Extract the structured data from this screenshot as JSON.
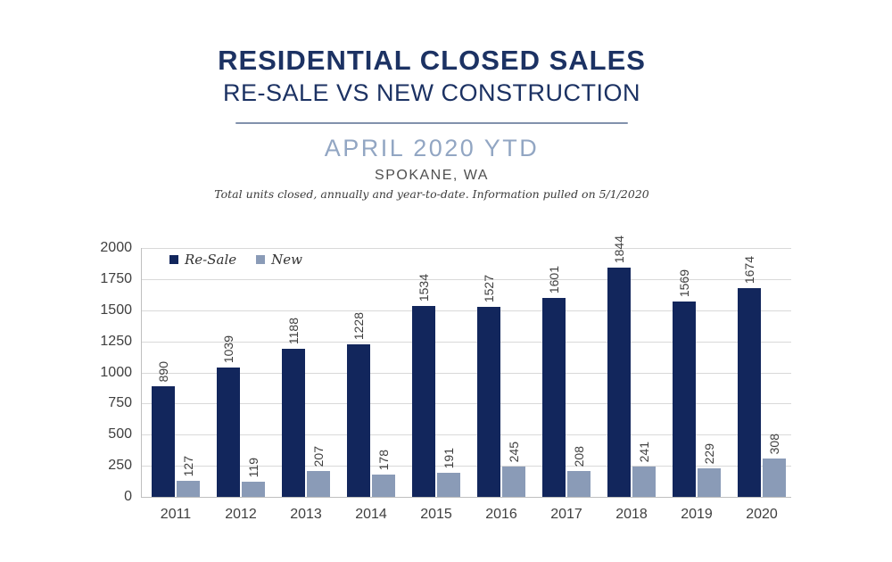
{
  "header": {
    "title": "RESIDENTIAL CLOSED SALES",
    "subtitle": "RE-SALE VS NEW CONSTRUCTION",
    "period": "APRIL 2020 YTD",
    "location": "SPOKANE, WA",
    "note": "Total units closed, annually and year-to-date.  Information pulled on 5/1/2020"
  },
  "colors": {
    "title_navy": "#1c3263",
    "period_blue": "#92a6c3",
    "divider_blue_gray": "#8191ac",
    "axis_text": "#3f3f3f",
    "gridline": "#d9d9d9",
    "axis_line": "#bfbfbf",
    "resale_navy": "#12265c",
    "new_blue_gray": "#8a9bb7"
  },
  "chart_data": {
    "type": "bar",
    "title": "",
    "xlabel": "",
    "ylabel": "",
    "categories": [
      "2011",
      "2012",
      "2013",
      "2014",
      "2015",
      "2016",
      "2017",
      "2018",
      "2019",
      "2020"
    ],
    "series": [
      {
        "name": "Re-Sale",
        "color": "#12265c",
        "values": [
          890,
          1039,
          1188,
          1228,
          1534,
          1527,
          1601,
          1844,
          1569,
          1674
        ]
      },
      {
        "name": "New",
        "color": "#8a9bb7",
        "values": [
          127,
          119,
          207,
          178,
          191,
          245,
          208,
          241,
          229,
          308
        ]
      }
    ],
    "ylim": [
      0,
      2000
    ],
    "ytick_step": 250,
    "yticks": [
      0,
      250,
      500,
      750,
      1000,
      1250,
      1500,
      1750,
      2000
    ],
    "grid": true,
    "legend_position": "top-left",
    "data_labels": "rotated-90-above-bars"
  }
}
